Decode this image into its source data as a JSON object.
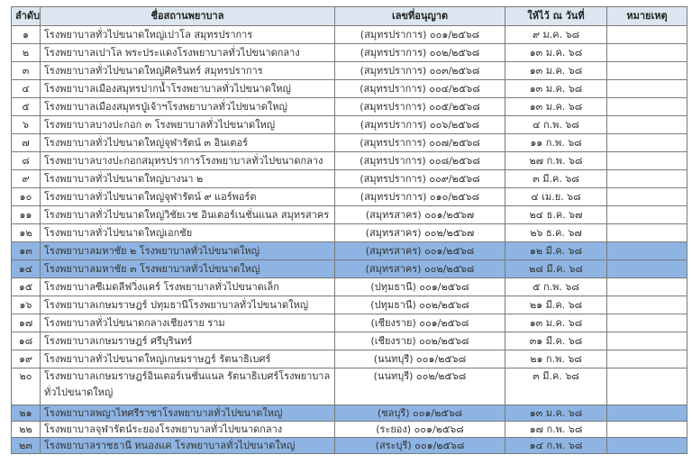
{
  "header": {
    "no": "ลำดับ",
    "name": "ชื่อสถานพยาบาล",
    "license": "เลขที่อนุญาต",
    "date": "ให้ไว้ ณ วันที่",
    "note": "หมายเหตุ"
  },
  "highlight_color": "#8db4e2",
  "header_color": "#dce6f1",
  "rows": [
    {
      "no": "๑",
      "name": "โรงพยาบาลทั่วไปขนาดใหญ่เปาโล สมุทรปราการ",
      "license": "(สมุทรปราการ) ๐๐๑/๒๕๖๘",
      "date": "๙ ม.ค. ๖๘",
      "note": "",
      "highlight": false
    },
    {
      "no": "๒",
      "name": "โรงพยาบาลเปาโล พระประแดงโรงพยาบาลทั่วไปขนาดกลาง",
      "license": "(สมุทรปราการ) ๐๐๒/๒๕๖๘",
      "date": "๑๓ ม.ค. ๖๘",
      "note": "",
      "highlight": false
    },
    {
      "no": "๓",
      "name": "โรงพยาบาลทั่วไปขนาดใหญ่ศิครินทร์ สมุทรปราการ",
      "license": "(สมุทรปราการ) ๐๐๓/๒๕๖๘",
      "date": "๑๓ ม.ค. ๖๘",
      "note": "",
      "highlight": false
    },
    {
      "no": "๔",
      "name": "โรงพยาบาลเมืองสมุทรปากน้ำโรงพยาบาลทั่วไปขนาดใหญ่",
      "license": "(สมุทรปราการ) ๐๐๔/๒๕๖๘",
      "date": "๑๓ ม.ค. ๖๘",
      "note": "",
      "highlight": false
    },
    {
      "no": "๕",
      "name": "โรงพยาบาลเมืองสมุทรปู่เจ้าฯโรงพยาบาลทั่วไปขนาดใหญ่",
      "license": "(สมุทรปราการ) ๐๐๕/๒๕๖๘",
      "date": "๑๓ ม.ค. ๖๘",
      "note": "",
      "highlight": false
    },
    {
      "no": "๖",
      "name": "โรงพยาบาลบางปะกอก ๓ โรงพยาบาลทั่วไปขนาดใหญ่",
      "license": "(สมุทรปราการ) ๐๐๖/๒๕๖๘",
      "date": "๔ ก.พ. ๖๘",
      "note": "",
      "highlight": false
    },
    {
      "no": "๗",
      "name": "โรงพยาบาลทั่วไปขนาดใหญ่จุฬารัตน์ ๓ อินเตอร์",
      "license": "(สมุทรปราการ) ๐๐๗/๒๕๖๘",
      "date": "๑๑ ก.พ. ๖๘",
      "note": "",
      "highlight": false
    },
    {
      "no": "๘",
      "name": "โรงพยาบาลบางปะกอกสมุทรปราการโรงพยาบาลทั่วไปขนาดกลาง",
      "license": "(สมุทรปราการ) ๐๐๘/๒๕๖๘",
      "date": "๒๗ ก.พ. ๖๘",
      "note": "",
      "highlight": false
    },
    {
      "no": "๙",
      "name": "โรงพยาบาลทั่วไปขนาดใหญ่บางนา ๒",
      "license": "(สมุทรปราการ) ๐๐๙/๒๕๖๘",
      "date": "๓ มี.ค. ๖๘",
      "note": "",
      "highlight": false
    },
    {
      "no": "๑๐",
      "name": "โรงพยาบาลทั่วไปขนาดใหญ่จุฬารัตน์ ๙ แอร์พอร์ต",
      "license": "(สมุทรปราการ) ๐๑๐/๒๕๖๘",
      "date": "๔ เม.ย. ๖๘",
      "note": "",
      "highlight": false
    },
    {
      "no": "๑๑",
      "name": "โรงพยาบาลทั่วไปขนาดใหญ่วิชัยเวช อินเตอร์เนชั่นแนล สมุทรสาคร",
      "license": "(สมุทรสาคร) ๐๐๑/๒๕๖๗",
      "date": "๒๔ ธ.ค. ๖๗",
      "note": "",
      "highlight": false
    },
    {
      "no": "๑๒",
      "name": "โรงพยาบาลทั่วไปขนาดใหญ่เอกชัย",
      "license": "(สมุทรสาคร) ๐๐๒/๒๕๖๗",
      "date": "๒๖ ธ.ค. ๖๗",
      "note": "",
      "highlight": false
    },
    {
      "no": "๑๓",
      "name": "โรงพยาบาลมหาชัย ๒ โรงพยาบาลทั่วไปขนาดใหญ่",
      "license": "(สมุทรสาคร) ๐๐๑/๒๕๖๘",
      "date": "๑๒ มี.ค. ๖๘",
      "note": "",
      "highlight": true
    },
    {
      "no": "๑๔",
      "name": "โรงพยาบาลมหาชัย ๓ โรงพยาบาลทั่วไปขนาดใหญ่",
      "license": "(สมุทรสาคร) ๐๐๒/๒๕๖๘",
      "date": "๒๘ มี.ค. ๖๘",
      "note": "",
      "highlight": true
    },
    {
      "no": "๑๕",
      "name": "โรงพยาบาลซีเมดลีฟวิ่งแคร์ โรงพยาบาลทั่วไปขนาดเล็ก",
      "license": "(ปทุมธานี) ๐๐๑/๒๕๖๘",
      "date": "๕ ก.พ. ๖๘",
      "note": "",
      "highlight": false
    },
    {
      "no": "๑๖",
      "name": "โรงพยาบาลเกษมราษฎร์ ปทุมธานีโรงพยาบาลทั่วไปขนาดใหญ่",
      "license": "(ปทุมธานี) ๐๐๒/๒๕๖๘",
      "date": "๒๑ มี.ค. ๖๘",
      "note": "",
      "highlight": false
    },
    {
      "no": "๑๗",
      "name": "โรงพยาบาลทั่วไปขนาดกลางเชียงราย ราม",
      "license": "(เชียงราย) ๐๐๑/๒๕๖๘",
      "date": "๑๓ ม.ค. ๖๘",
      "note": "",
      "highlight": false
    },
    {
      "no": "๑๘",
      "name": "โรงพยาบาลเกษมราษฎร์ ศรีบุรินทร์",
      "license": "(เชียงราย) ๐๐๒/๒๕๖๘",
      "date": "๓๑ มี.ค. ๖๘",
      "note": "",
      "highlight": false
    },
    {
      "no": "๑๙",
      "name": "โรงพยาบาลทั่วไปขนาดใหญ่เกษมราษฎร์ รัตนาธิเบศร์",
      "license": "(นนทบุรี) ๐๐๑/๒๕๖๘",
      "date": "๒๑ ก.พ. ๖๘",
      "note": "",
      "highlight": false
    },
    {
      "no": "๒๐",
      "name": "โรงพยาบาลเกษมราษฎร์อินเตอร์เนชั่นแนล รัตนาธิเบศร์โรงพยาบาลทั่วไปขนาดใหญ่",
      "license": "(นนทบุรี) ๐๐๒/๒๕๖๘",
      "date": "๓ มี.ค. ๖๘",
      "note": "",
      "highlight": false
    },
    {
      "no": "๒๑",
      "name": "โรงพยาบาลพญาไทศรีราชาโรงพยาบาลทั่วไปขนาดใหญ่",
      "license": "(ชลบุรี) ๐๐๑/๒๕๖๘",
      "date": "๑๓ ม.ค. ๖๘",
      "note": "",
      "highlight": true
    },
    {
      "no": "๒๒",
      "name": "โรงพยาบาลจุฬารัตน์ระยองโรงพยาบาลทั่วไปขนาดกลาง",
      "license": "(ระยอง) ๐๐๑/๒๕๖๘",
      "date": "๑๗ ก.พ. ๖๘",
      "note": "",
      "highlight": false
    },
    {
      "no": "๒๓",
      "name": "โรงพยาบาลราชธานี หนองแค โรงพยาบาลทั่วไปขนาดใหญ่",
      "license": "(สระบุรี) ๐๐๑/๒๕๖๘",
      "date": "๑๔ ก.พ. ๖๘",
      "note": "",
      "highlight": true
    }
  ]
}
